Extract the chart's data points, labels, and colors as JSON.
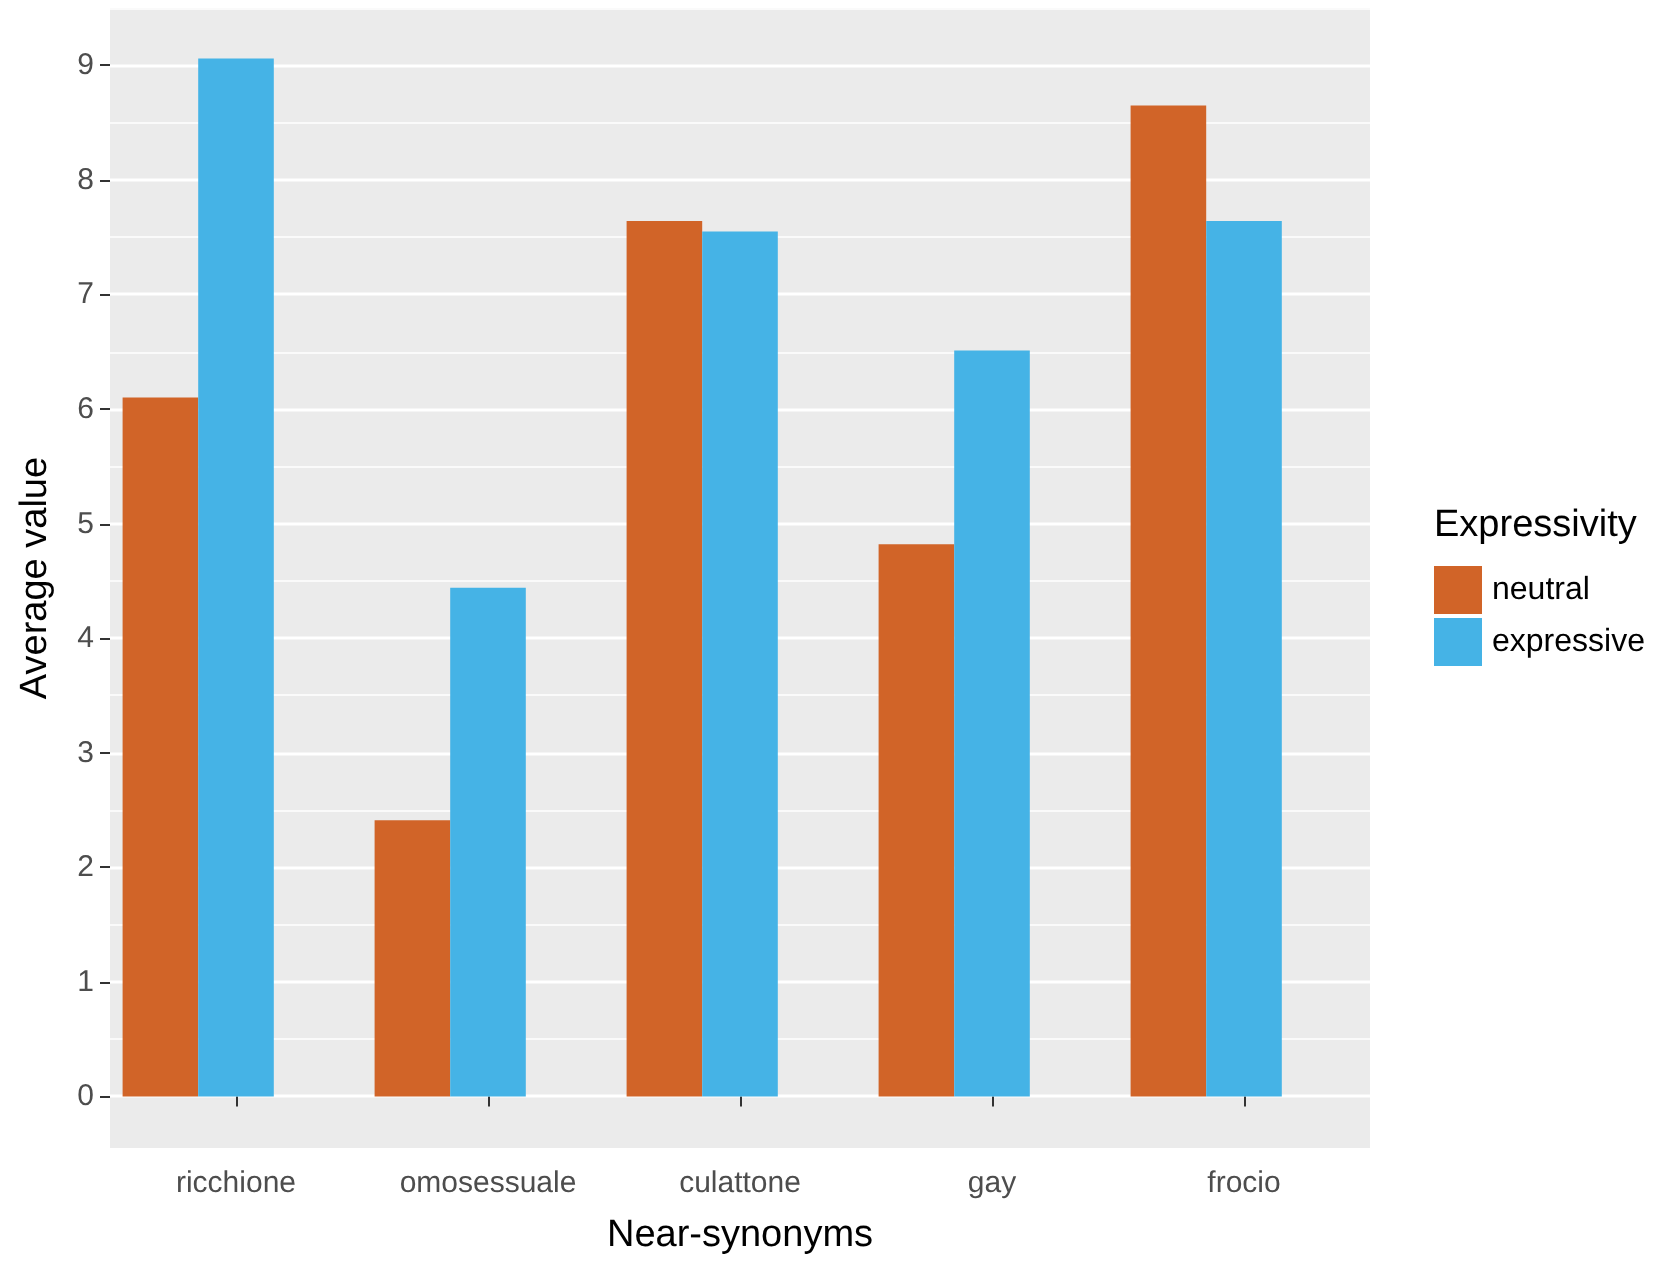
{
  "chart_data": {
    "type": "bar",
    "xlabel": "Near-synonyms",
    "ylabel": "Average value",
    "legend_title": "Expressivity",
    "categories": [
      "ricchione",
      "omosessuale",
      "culattone",
      "gay",
      "frocio"
    ],
    "series": [
      {
        "name": "neutral",
        "color": "#d16428",
        "values": [
          6.1,
          2.41,
          7.64,
          4.82,
          8.65
        ]
      },
      {
        "name": "expressive",
        "color": "#45b3e6",
        "values": [
          9.06,
          4.44,
          7.55,
          6.51,
          7.64
        ]
      }
    ],
    "ylim": [
      -0.45,
      9.5
    ],
    "yticks": [
      0,
      1,
      2,
      3,
      4,
      5,
      6,
      7,
      8,
      9
    ],
    "grid": true,
    "legend": "right"
  }
}
